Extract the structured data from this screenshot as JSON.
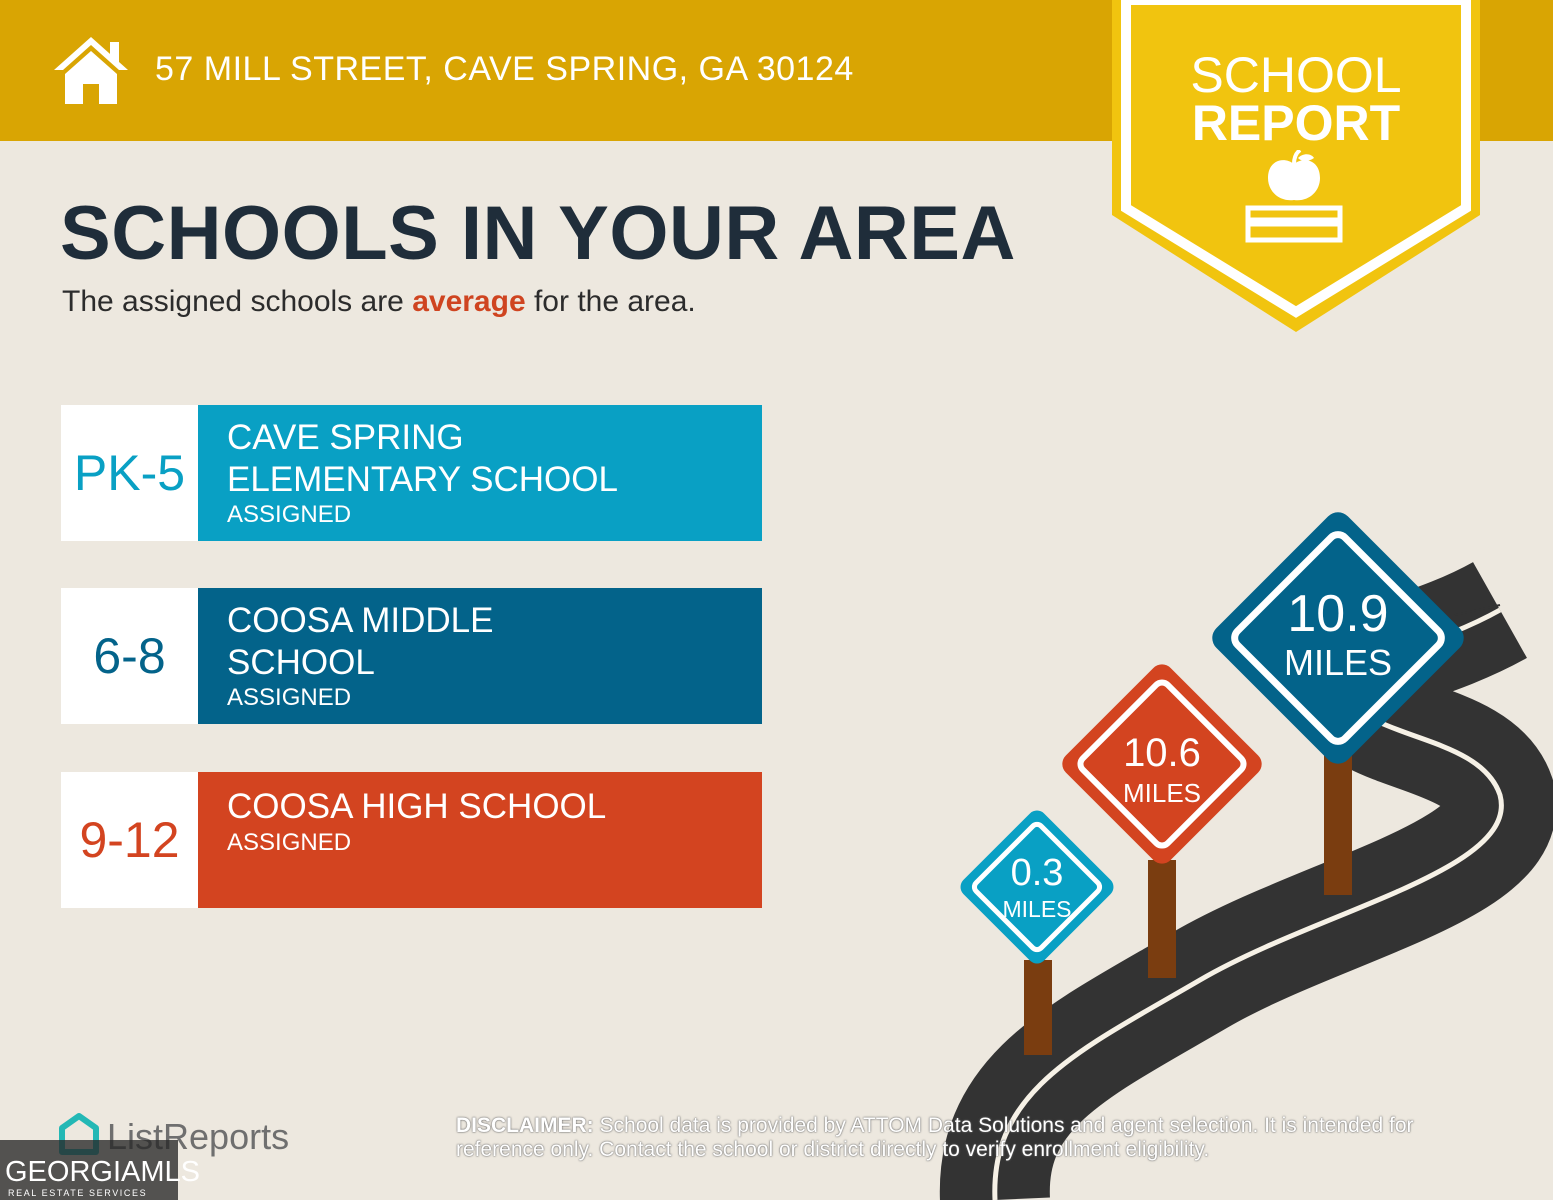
{
  "header": {
    "address": "57 MILL STREET, CAVE SPRING, GA 30124",
    "icon": "house-icon",
    "color": "#d9a503"
  },
  "badge": {
    "line1": "SCHOOL",
    "line2": "REPORT",
    "icon": "apple-on-books-icon",
    "color": "#f1c40f"
  },
  "main": {
    "title": "SCHOOLS IN YOUR AREA",
    "subtitle_before": "The assigned schools are ",
    "subtitle_highlight": "average",
    "subtitle_after": " for the area."
  },
  "schools": [
    {
      "grades": "PK-5",
      "name": "CAVE SPRING\nELEMENTARY SCHOOL",
      "status": "ASSIGNED",
      "color": "#09a0c4"
    },
    {
      "grades": "6-8",
      "name": "COOSA MIDDLE\nSCHOOL",
      "status": "ASSIGNED",
      "color": "#03638a"
    },
    {
      "grades": "9-12",
      "name": "COOSA HIGH SCHOOL",
      "status": "ASSIGNED",
      "color": "#d34420"
    }
  ],
  "distance_signs": [
    {
      "value": "0.3",
      "unit": "MILES",
      "color": "#09a0c4"
    },
    {
      "value": "10.6",
      "unit": "MILES",
      "color": "#d34420"
    },
    {
      "value": "10.9",
      "unit": "MILES",
      "color": "#03638a"
    }
  ],
  "footer": {
    "logo_text": "ListReports",
    "disclaimer_label": "DISCLAIMER:",
    "disclaimer_text": " School data is provided by ATTOM Data Solutions and agent selection. It is intended for reference only. Contact the school or district directly to verify enrollment eligibility.",
    "watermark_main": "GEORGIAMLS",
    "watermark_sub": "REAL ESTATE SERVICES"
  }
}
